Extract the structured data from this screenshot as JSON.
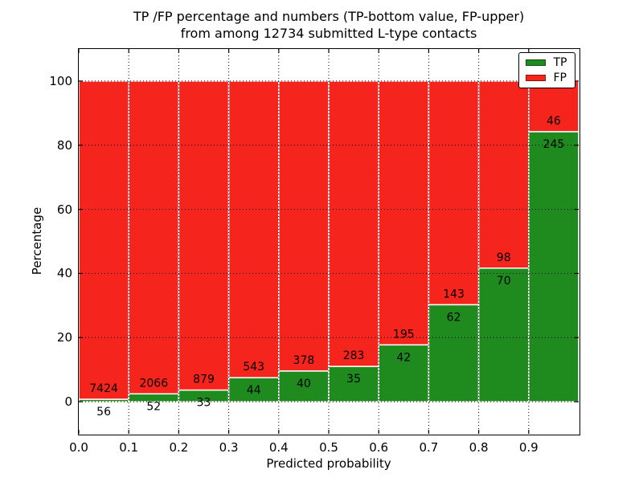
{
  "title": {
    "line1": "TP /FP percentage and numbers (TP-bottom value, FP-upper)",
    "line2": "from among 12734 submitted L-type contacts"
  },
  "axes": {
    "xlabel": "Predicted probability",
    "ylabel": "Percentage"
  },
  "legend": [
    {
      "label": "TP",
      "color": "#1f8b1f"
    },
    {
      "label": "FP",
      "color": "#f5241c"
    }
  ],
  "colors": {
    "tp_green": "#1f8b1f",
    "fp_red": "#f5241c",
    "bar_edge": "#ffffff",
    "grid": "#000000",
    "frame": "#000000",
    "background": "#ffffff"
  },
  "chart_data": {
    "type": "bar",
    "stacked": true,
    "normalized_to_percent": true,
    "title": "TP /FP percentage and numbers (TP-bottom value, FP-upper) from among 12734 submitted L-type contacts",
    "xlabel": "Predicted probability",
    "ylabel": "Percentage",
    "total_contacts": 12734,
    "categories": [
      "0.0-0.1",
      "0.1-0.2",
      "0.2-0.3",
      "0.3-0.4",
      "0.4-0.5",
      "0.5-0.6",
      "0.6-0.7",
      "0.7-0.8",
      "0.8-0.9",
      "0.9-1.0"
    ],
    "series": [
      {
        "name": "TP",
        "color": "#1f8b1f",
        "counts": [
          56,
          52,
          33,
          44,
          40,
          35,
          42,
          62,
          70,
          245
        ]
      },
      {
        "name": "FP",
        "color": "#f5241c",
        "counts": [
          7424,
          2066,
          879,
          543,
          378,
          283,
          195,
          143,
          98,
          46
        ]
      }
    ],
    "xlim": [
      0,
      1
    ],
    "ylim": [
      -10,
      110
    ],
    "x_ticks": [
      "0.0",
      "0.1",
      "0.2",
      "0.3",
      "0.4",
      "0.5",
      "0.6",
      "0.7",
      "0.8",
      "0.9"
    ],
    "y_ticks": [
      0,
      20,
      40,
      60,
      80,
      100
    ],
    "grid": "dotted",
    "legend_position": "upper right"
  }
}
